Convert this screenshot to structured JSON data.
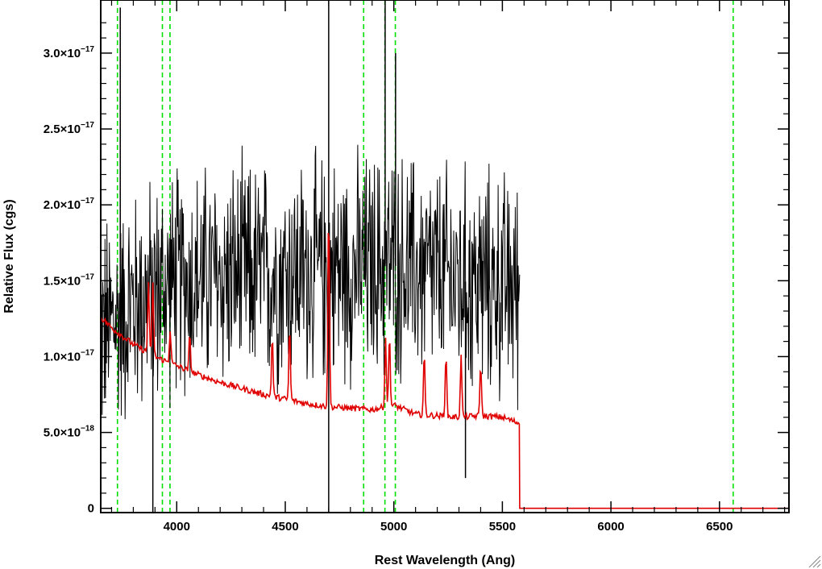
{
  "chart_data": {
    "type": "line",
    "xlabel": "Rest Wavelength (Ang)",
    "ylabel": "Relative Flux (cgs)",
    "xlim": [
      3650,
      6820
    ],
    "ylim": [
      -2.8e-19,
      3.35e-17
    ],
    "x_ticks": [
      {
        "value": 4000,
        "label": "4000"
      },
      {
        "value": 4500,
        "label": "4500"
      },
      {
        "value": 5000,
        "label": "5000"
      },
      {
        "value": 5500,
        "label": "5500"
      },
      {
        "value": 6000,
        "label": "6000"
      },
      {
        "value": 6500,
        "label": "6500"
      }
    ],
    "y_ticks": [
      {
        "value": 0,
        "mantissa": "0",
        "exponent": ""
      },
      {
        "value": 5e-18,
        "mantissa": "5.0×10",
        "exponent": "−18"
      },
      {
        "value": 1e-17,
        "mantissa": "1.0×10",
        "exponent": "−17"
      },
      {
        "value": 1.5e-17,
        "mantissa": "1.5×10",
        "exponent": "−17"
      },
      {
        "value": 2e-17,
        "mantissa": "2.0×10",
        "exponent": "−17"
      },
      {
        "value": 2.5e-17,
        "mantissa": "2.5×10",
        "exponent": "−17"
      },
      {
        "value": 3e-17,
        "mantissa": "3.0×10",
        "exponent": "−17"
      }
    ],
    "grid": false,
    "legend": "none",
    "series": [
      {
        "color": "#000000",
        "style": "noisy-spectrum",
        "x_range": [
          3650,
          5580
        ],
        "baseline_points": [
          [
            3650,
            1.15e-17
          ],
          [
            3800,
            1.35e-17
          ],
          [
            4000,
            1.5e-17
          ],
          [
            4500,
            1.55e-17
          ],
          [
            5000,
            1.6e-17
          ],
          [
            5300,
            1.5e-17
          ],
          [
            5580,
            1.45e-17
          ]
        ],
        "noise_amplitude": 6e-18,
        "spikes": [
          [
            3890,
            -2.8e-19
          ],
          [
            3740,
            3.3e-17
          ],
          [
            4700,
            3.35e-17
          ],
          [
            4700,
            -2.8e-19
          ],
          [
            4960,
            3.35e-17
          ],
          [
            5008,
            3e-17
          ],
          [
            5330,
            2e-18
          ]
        ]
      },
      {
        "color": "#e00000",
        "style": "model-spectrum",
        "continuum_points": [
          [
            3650,
            1.26e-17
          ],
          [
            3700,
            1.19e-17
          ],
          [
            3800,
            1.08e-17
          ],
          [
            3900,
            1e-17
          ],
          [
            4000,
            9.4e-18
          ],
          [
            4100,
            8.8e-18
          ],
          [
            4200,
            8.3e-18
          ],
          [
            4300,
            7.9e-18
          ],
          [
            4400,
            7.5e-18
          ],
          [
            4500,
            7.2e-18
          ],
          [
            4600,
            6.9e-18
          ],
          [
            4700,
            6.7e-18
          ],
          [
            4800,
            6.6e-18
          ],
          [
            4900,
            6.5e-18
          ],
          [
            5000,
            6.8e-18
          ],
          [
            5100,
            6.2e-18
          ],
          [
            5200,
            6.1e-18
          ],
          [
            5300,
            6e-18
          ],
          [
            5400,
            6.1e-18
          ],
          [
            5500,
            6e-18
          ],
          [
            5580,
            5.6e-18
          ]
        ],
        "emission_lines": [
          [
            3870,
            1.5e-17
          ],
          [
            3890,
            1.5e-17
          ],
          [
            3970,
            1.18e-17
          ],
          [
            4060,
            1.14e-17
          ],
          [
            4440,
            1.14e-17
          ],
          [
            4520,
            1.2e-17
          ],
          [
            4700,
            2e-17
          ],
          [
            4962,
            1.12e-17
          ],
          [
            4980,
            1.15e-17
          ],
          [
            5140,
            1.02e-17
          ],
          [
            5240,
            1.02e-17
          ],
          [
            5310,
            1e-17
          ],
          [
            5400,
            9.6e-18
          ]
        ],
        "drop_to_zero_at": 5580,
        "zero_until": 6820
      }
    ],
    "reference_lines": {
      "color": "#00e000",
      "style": "dashed",
      "x": [
        3727,
        3934,
        3969,
        4861,
        4959,
        5007,
        6563
      ]
    }
  }
}
